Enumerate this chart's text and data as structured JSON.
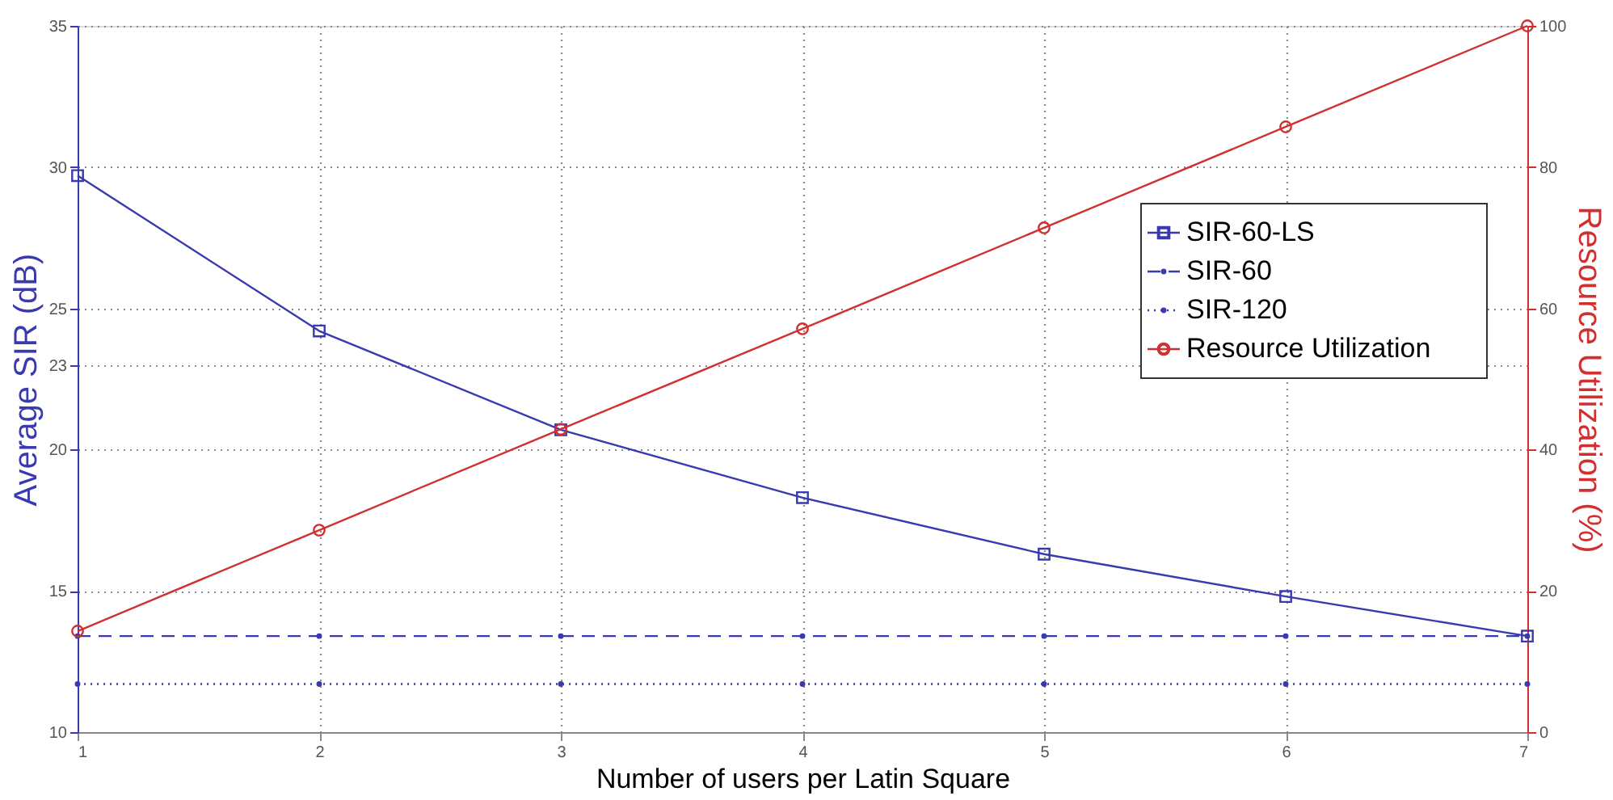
{
  "chart_data": {
    "type": "line",
    "xlabel": "Number of users per Latin Square",
    "ylabel": "Average SIR (dB)",
    "y2label": "Resource Utilization (%)",
    "x": [
      1,
      2,
      3,
      4,
      5,
      6,
      7
    ],
    "xlim": [
      1,
      7
    ],
    "xticks": [
      1,
      2,
      3,
      4,
      5,
      6,
      7
    ],
    "ylim": [
      10,
      35
    ],
    "yticks": [
      10,
      15,
      20,
      23,
      25,
      30,
      35
    ],
    "y2lim": [
      0,
      100
    ],
    "y2ticks": [
      0,
      20,
      40,
      60,
      80,
      100
    ],
    "grid": true,
    "legend": "right",
    "series": [
      {
        "name": "SIR-60-LS",
        "color": "#3a3ab0",
        "marker": "square",
        "line_style": "solid",
        "values": [
          29.7,
          24.2,
          20.7,
          18.3,
          16.3,
          14.8,
          13.4
        ]
      },
      {
        "name": "SIR-60",
        "color": "#3a3ab0",
        "marker": "circle",
        "line_style": "dashed",
        "values": [
          13.4,
          13.4,
          13.4,
          13.4,
          13.4,
          13.4,
          13.4
        ]
      },
      {
        "name": "SIR-120",
        "color": "#3a3ab0",
        "marker": "circle",
        "line_style": "dotted",
        "values": [
          11.7,
          11.7,
          11.7,
          11.7,
          11.7,
          11.7,
          11.7
        ]
      },
      {
        "name": "Resource Utilization",
        "color": "#d03030",
        "marker": "circle",
        "line_style": "solid",
        "axis": "y2",
        "values": [
          14.3,
          28.6,
          42.9,
          57.1,
          71.4,
          85.7,
          100
        ]
      }
    ]
  }
}
